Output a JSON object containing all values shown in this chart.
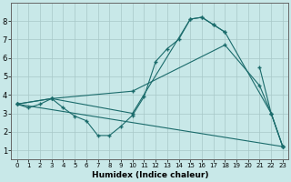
{
  "xlabel": "Humidex (Indice chaleur)",
  "xlim": [
    -0.5,
    23.5
  ],
  "ylim": [
    0.5,
    9.0
  ],
  "yticks": [
    1,
    2,
    3,
    4,
    5,
    6,
    7,
    8
  ],
  "xticks": [
    0,
    1,
    2,
    3,
    4,
    5,
    6,
    7,
    8,
    9,
    10,
    11,
    12,
    13,
    14,
    15,
    16,
    17,
    18,
    19,
    20,
    21,
    22,
    23
  ],
  "bg_color": "#c8e8e8",
  "grid_color": "#a8c8c8",
  "line_color": "#1a6b6b",
  "lines": [
    {
      "x": [
        0,
        1,
        2,
        3,
        4,
        5,
        6,
        7,
        8,
        9,
        10,
        11,
        12,
        13,
        14,
        15,
        16,
        17,
        18,
        19,
        20,
        21,
        22,
        23
      ],
      "y": [
        3.5,
        3.3,
        3.5,
        3.8,
        3.3,
        2.85,
        2.6,
        1.8,
        1.8,
        2.3,
        2.9,
        3.9,
        5.8,
        6.5,
        7.0,
        8.1,
        8.2,
        7.8,
        7.4,
        null,
        null,
        5.5,
        3.0,
        1.2
      ]
    },
    {
      "x": [
        0,
        3,
        10,
        15,
        16,
        17,
        18,
        22,
        23
      ],
      "y": [
        3.5,
        3.8,
        3.0,
        8.1,
        8.2,
        7.8,
        7.4,
        3.0,
        1.2
      ]
    },
    {
      "x": [
        0,
        3,
        10,
        18,
        21,
        22,
        23
      ],
      "y": [
        3.5,
        3.8,
        4.2,
        6.7,
        4.5,
        3.0,
        1.2
      ]
    },
    {
      "x": [
        0,
        23
      ],
      "y": [
        3.5,
        1.2
      ]
    }
  ]
}
